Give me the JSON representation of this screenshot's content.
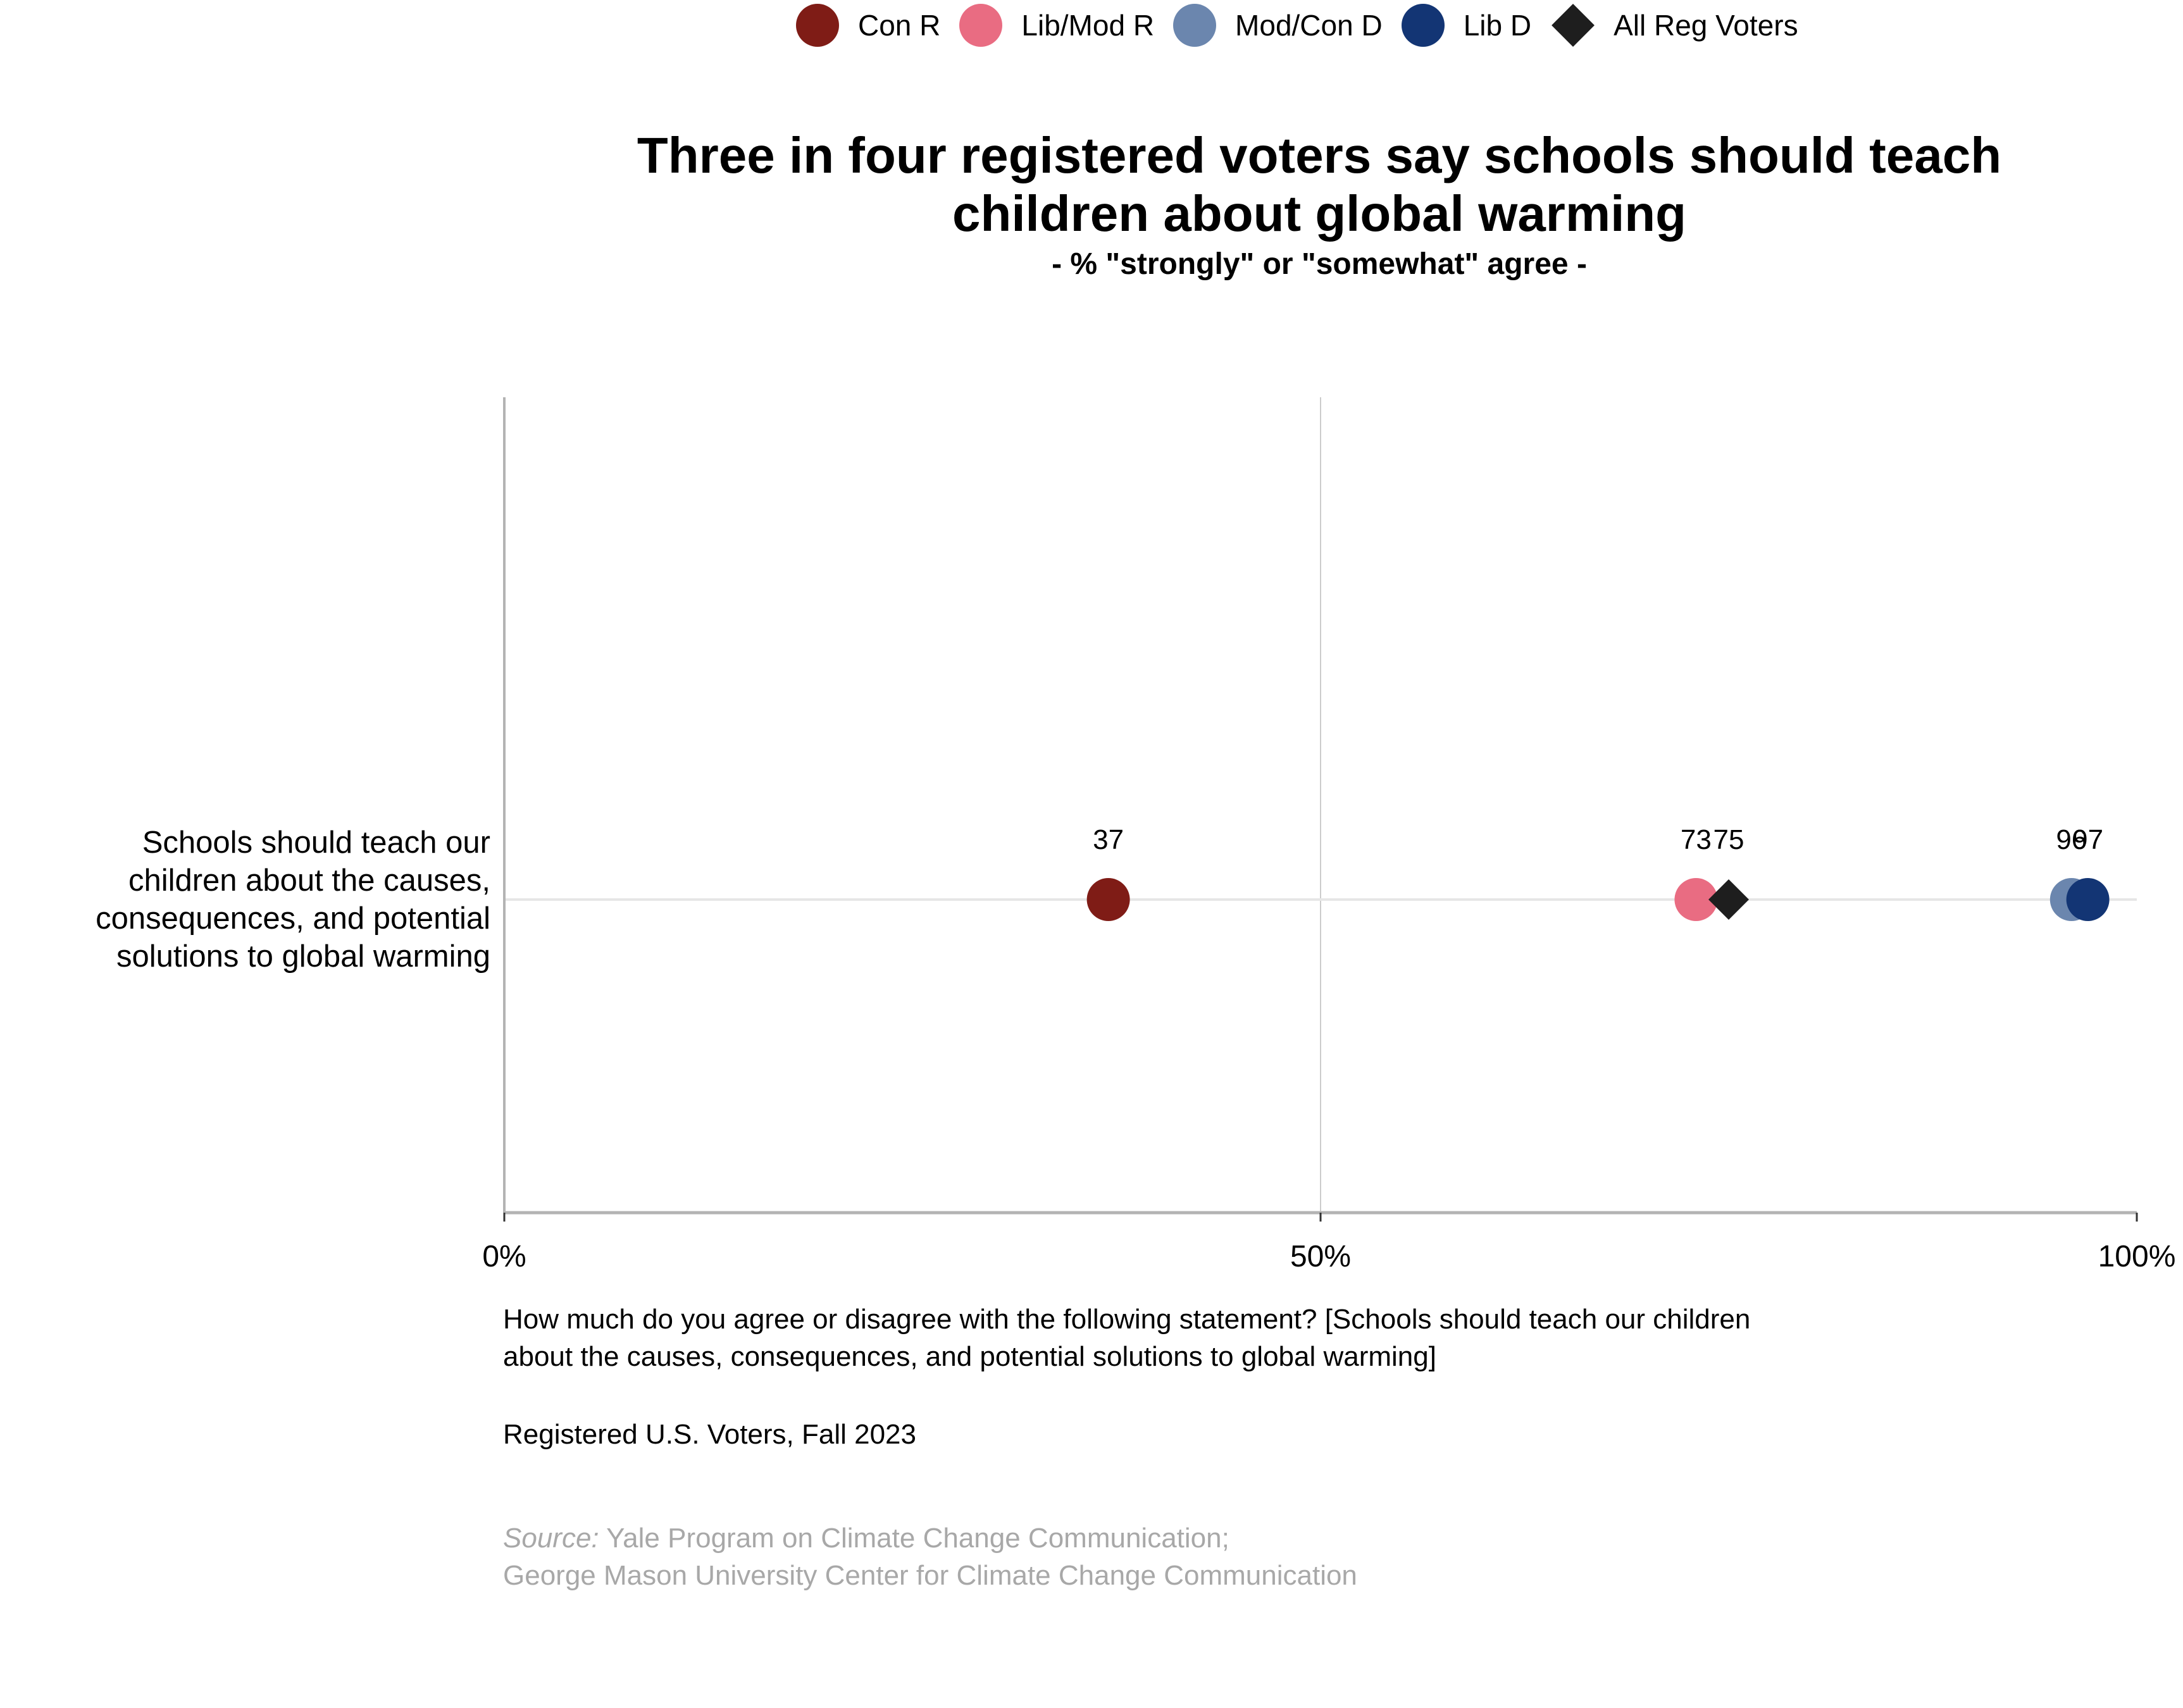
{
  "chart_data": {
    "type": "scatter",
    "title": "Three in four registered voters say schools should teach children about global warming",
    "title_lines": [
      "Three in four registered voters say schools should teach",
      "children about global warming"
    ],
    "subtitle": "- % \"strongly\" or \"somewhat\" agree -",
    "xlabel": "",
    "ylabel": "",
    "xlim": [
      0,
      100
    ],
    "x_ticks": [
      0,
      50,
      100
    ],
    "x_tick_labels": [
      "0%",
      "50%",
      "100%"
    ],
    "grid": "vertical at 50%",
    "legend_position": "top-center",
    "categories": [
      "Schools should teach our children about the causes, consequences, and potential solutions to global warming"
    ],
    "category_label_lines": [
      "Schools should teach our",
      "children about the causes,",
      "consequences, and potential",
      "solutions to global warming"
    ],
    "series": [
      {
        "name": "Con R",
        "color": "#7f1c16",
        "marker": "circle",
        "values": [
          37
        ]
      },
      {
        "name": "Lib/Mod R",
        "color": "#e96c82",
        "marker": "circle",
        "values": [
          73
        ]
      },
      {
        "name": "Mod/Con D",
        "color": "#6b86ae",
        "marker": "circle",
        "values": [
          96
        ]
      },
      {
        "name": "Lib D",
        "color": "#133574",
        "marker": "circle",
        "values": [
          97
        ]
      },
      {
        "name": "All Reg Voters",
        "color": "#1e1e1e",
        "marker": "diamond",
        "values": [
          75
        ]
      }
    ]
  },
  "footer": {
    "question_lines": [
      "How much do you agree or disagree with the following statement? [Schools should teach our children",
      "about the causes, consequences, and potential solutions to global warming]"
    ],
    "population": "Registered U.S. Voters, Fall 2023",
    "source_label": "Source:",
    "source_line1": " Yale Program on Climate Change Communication;",
    "source_line2": "George Mason University Center for Climate Change Communication"
  },
  "colors": {
    "axis": "#b3b3b3",
    "row_line": "#e6e6e6",
    "gridline": "#cccccc",
    "source_text": "#a8a8a8"
  }
}
